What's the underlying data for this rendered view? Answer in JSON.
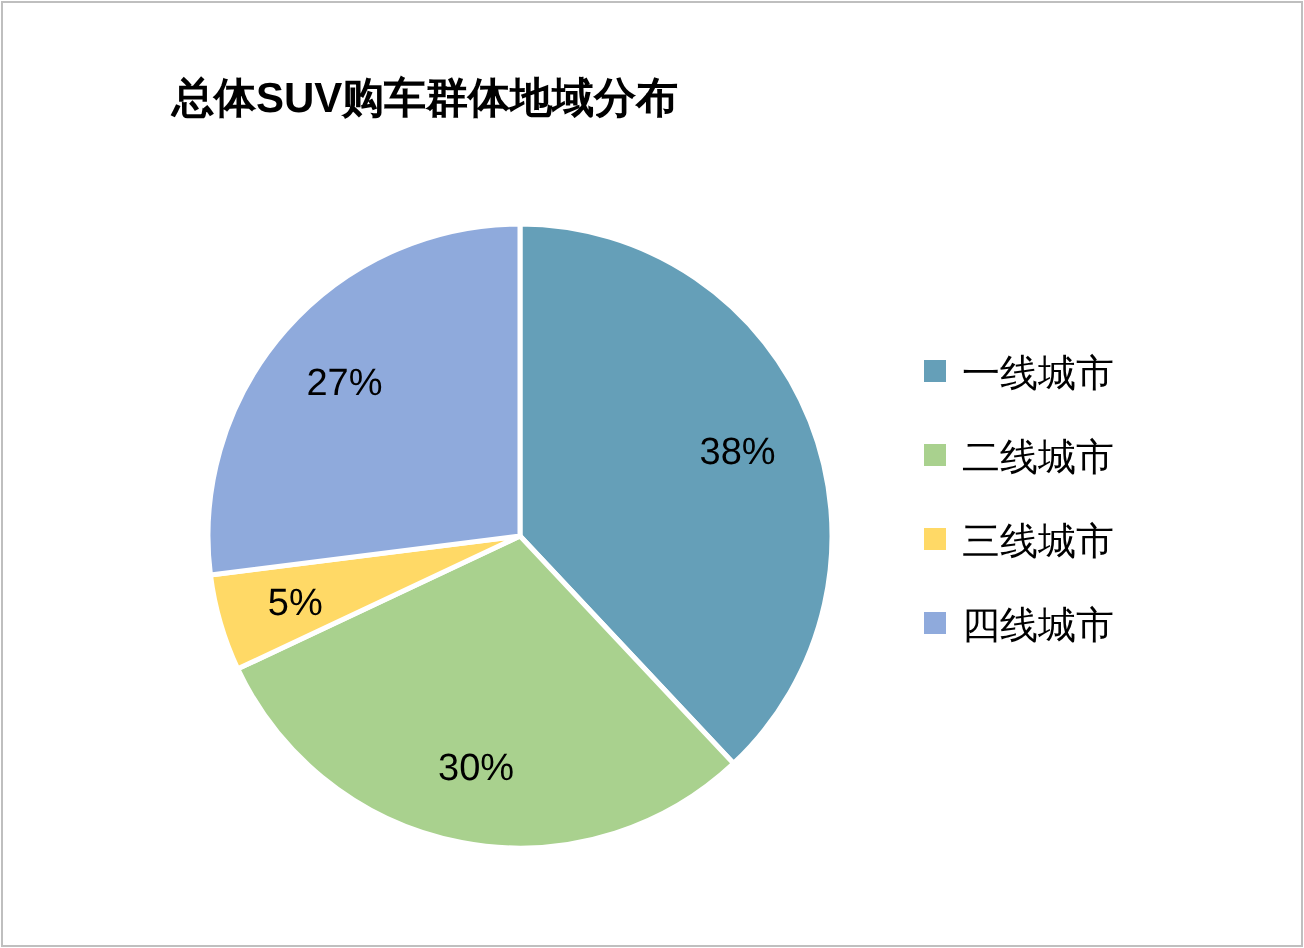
{
  "chart_data": {
    "type": "pie",
    "title": "总体SUV购车群体地域分布",
    "categories": [
      "一线城市",
      "二线城市",
      "三线城市",
      "四线城市"
    ],
    "values": [
      38,
      30,
      5,
      27
    ],
    "colors": [
      "#659fb8",
      "#a9d18e",
      "#ffd966",
      "#8faadc"
    ],
    "value_labels": [
      "38%",
      "30%",
      "5%",
      "27%"
    ],
    "legend": "right"
  }
}
